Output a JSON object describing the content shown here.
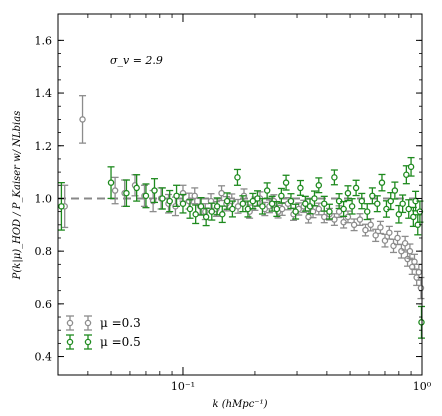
{
  "chart_data": {
    "type": "scatter",
    "xlabel": "k (hMpc⁻¹)",
    "ylabel": "P(k|μ)_HOD / P_Kaiser w/ NLbias",
    "annotation": "σ_v = 2.9",
    "xscale": "log",
    "xlim": [
      0.03,
      1.0
    ],
    "ylim": [
      0.33,
      1.7
    ],
    "x_ticks": [
      0.1,
      1.0
    ],
    "x_tick_labels": [
      "10⁻¹",
      "10⁰"
    ],
    "y_ticks": [
      0.4,
      0.6,
      0.8,
      1.0,
      1.2,
      1.4,
      1.6
    ],
    "y_tick_labels": [
      "0.4",
      "0.6",
      "0.8",
      "1.0",
      "1.2",
      "1.4",
      "1.6"
    ],
    "reference_line": {
      "y": 1.0,
      "style": "dashed",
      "color": "#888888"
    },
    "legend_position": "lower-left",
    "series": [
      {
        "name": "μ =0.3",
        "color": "#8c8c8c",
        "x": [
          0.032,
          0.038,
          0.052,
          0.057,
          0.063,
          0.069,
          0.075,
          0.081,
          0.087,
          0.093,
          0.1,
          0.106,
          0.112,
          0.118,
          0.124,
          0.131,
          0.138,
          0.145,
          0.152,
          0.16,
          0.17,
          0.18,
          0.19,
          0.2,
          0.21,
          0.22,
          0.23,
          0.24,
          0.25,
          0.26,
          0.275,
          0.29,
          0.305,
          0.32,
          0.335,
          0.35,
          0.37,
          0.39,
          0.41,
          0.43,
          0.45,
          0.47,
          0.49,
          0.52,
          0.55,
          0.58,
          0.61,
          0.64,
          0.67,
          0.7,
          0.73,
          0.76,
          0.79,
          0.82,
          0.85,
          0.87,
          0.89,
          0.91,
          0.93,
          0.95,
          0.97,
          0.99
        ],
        "y": [
          0.97,
          1.3,
          1.03,
          1.02,
          1.05,
          1.01,
          0.99,
          1.0,
          0.98,
          0.97,
          1.02,
          0.99,
          1.01,
          0.97,
          0.95,
          0.99,
          0.96,
          1.02,
          0.98,
          0.99,
          0.97,
          1.01,
          0.95,
          0.98,
          1.0,
          0.96,
          0.97,
          0.99,
          0.95,
          0.96,
          0.98,
          0.94,
          0.96,
          0.97,
          0.93,
          0.95,
          0.96,
          0.93,
          0.94,
          0.92,
          0.95,
          0.91,
          0.93,
          0.9,
          0.92,
          0.88,
          0.9,
          0.86,
          0.89,
          0.84,
          0.87,
          0.82,
          0.85,
          0.8,
          0.83,
          0.77,
          0.8,
          0.74,
          0.76,
          0.7,
          0.72,
          0.66
        ],
        "err": [
          0.08,
          0.09,
          0.05,
          0.05,
          0.04,
          0.04,
          0.04,
          0.04,
          0.035,
          0.035,
          0.03,
          0.03,
          0.03,
          0.03,
          0.03,
          0.028,
          0.028,
          0.028,
          0.027,
          0.027,
          0.026,
          0.026,
          0.025,
          0.025,
          0.025,
          0.025,
          0.024,
          0.024,
          0.024,
          0.024,
          0.023,
          0.023,
          0.023,
          0.023,
          0.023,
          0.023,
          0.022,
          0.022,
          0.022,
          0.022,
          0.022,
          0.022,
          0.022,
          0.022,
          0.022,
          0.022,
          0.023,
          0.023,
          0.023,
          0.024,
          0.024,
          0.025,
          0.025,
          0.026,
          0.026,
          0.027,
          0.027,
          0.028,
          0.028,
          0.03,
          0.03,
          0.04
        ]
      },
      {
        "name": "μ =0.5",
        "color": "#1e8a1e",
        "x": [
          0.031,
          0.05,
          0.058,
          0.064,
          0.07,
          0.076,
          0.082,
          0.088,
          0.094,
          0.1,
          0.107,
          0.113,
          0.119,
          0.125,
          0.132,
          0.139,
          0.146,
          0.153,
          0.161,
          0.169,
          0.178,
          0.187,
          0.196,
          0.205,
          0.215,
          0.225,
          0.236,
          0.247,
          0.258,
          0.27,
          0.283,
          0.296,
          0.31,
          0.325,
          0.34,
          0.355,
          0.37,
          0.39,
          0.41,
          0.43,
          0.45,
          0.47,
          0.49,
          0.51,
          0.53,
          0.56,
          0.59,
          0.62,
          0.65,
          0.68,
          0.71,
          0.74,
          0.77,
          0.8,
          0.83,
          0.86,
          0.88,
          0.9,
          0.92,
          0.94,
          0.96,
          0.98,
          0.995
        ],
        "y": [
          0.97,
          1.06,
          1.02,
          1.04,
          1.01,
          1.03,
          1.0,
          0.99,
          1.01,
          0.98,
          0.96,
          0.94,
          0.97,
          0.93,
          0.95,
          0.97,
          0.94,
          0.99,
          0.96,
          1.08,
          0.98,
          0.96,
          0.99,
          1.0,
          0.97,
          1.03,
          0.98,
          0.96,
          1.01,
          1.06,
          0.99,
          0.95,
          1.04,
          0.98,
          0.97,
          1.0,
          1.05,
          0.98,
          0.95,
          1.08,
          0.99,
          0.96,
          1.02,
          0.97,
          1.04,
          0.99,
          0.95,
          1.01,
          0.98,
          1.06,
          0.96,
          0.99,
          1.03,
          0.94,
          0.98,
          1.09,
          0.96,
          1.12,
          0.93,
          0.99,
          0.9,
          0.95,
          0.53
        ],
        "err": [
          0.09,
          0.06,
          0.05,
          0.05,
          0.045,
          0.045,
          0.04,
          0.04,
          0.04,
          0.035,
          0.035,
          0.035,
          0.033,
          0.033,
          0.032,
          0.032,
          0.031,
          0.031,
          0.03,
          0.03,
          0.03,
          0.03,
          0.029,
          0.029,
          0.029,
          0.029,
          0.028,
          0.028,
          0.028,
          0.028,
          0.028,
          0.028,
          0.028,
          0.028,
          0.028,
          0.028,
          0.028,
          0.028,
          0.028,
          0.028,
          0.028,
          0.028,
          0.028,
          0.029,
          0.029,
          0.029,
          0.03,
          0.03,
          0.03,
          0.031,
          0.031,
          0.032,
          0.032,
          0.033,
          0.033,
          0.034,
          0.035,
          0.035,
          0.036,
          0.037,
          0.038,
          0.04,
          0.06
        ]
      }
    ]
  }
}
